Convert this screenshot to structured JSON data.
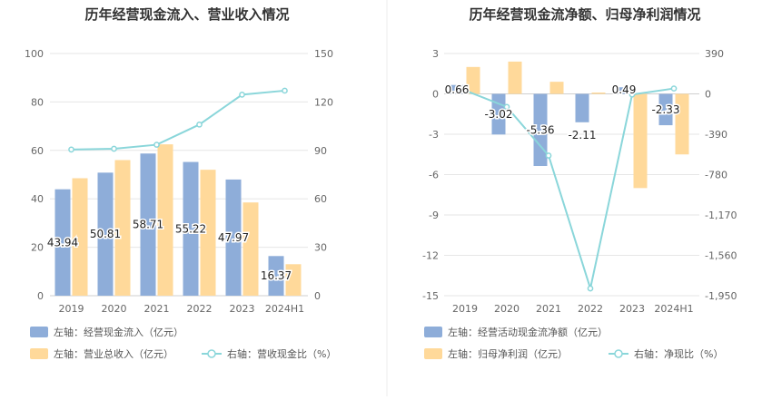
{
  "chart_data": [
    {
      "type": "bar",
      "title": "历年经营现金流入、营业收入情况",
      "categories": [
        "2019",
        "2020",
        "2021",
        "2022",
        "2023",
        "2024H1"
      ],
      "left_axis": {
        "min": 0,
        "max": 100,
        "ticks": [
          "0",
          "20",
          "40",
          "60",
          "80",
          "100"
        ]
      },
      "right_axis": {
        "min": 0,
        "max": 150,
        "ticks": [
          "0",
          "30",
          "60",
          "90",
          "120",
          "150"
        ]
      },
      "series": [
        {
          "name": "左轴：经营现金流入（亿元）",
          "kind": "bar",
          "axis": "left",
          "color": "#8eadd9",
          "values": [
            43.94,
            50.81,
            58.71,
            55.22,
            47.97,
            16.37
          ],
          "labels": [
            "43.94",
            "50.81",
            "58.71",
            "55.22",
            "47.97",
            "16.37"
          ]
        },
        {
          "name": "左轴：营业总收入（亿元）",
          "kind": "bar",
          "axis": "left",
          "color": "#ffd99a",
          "values": [
            48.5,
            56.0,
            62.5,
            52.0,
            38.5,
            13.0
          ]
        },
        {
          "name": "右轴：营收现金比（%）",
          "kind": "line",
          "axis": "right",
          "color": "#8ad6da",
          "values": [
            90.5,
            91.0,
            93.5,
            106.0,
            124.5,
            127.0
          ]
        }
      ],
      "grid": true,
      "legend_position": "bottom-left"
    },
    {
      "type": "bar",
      "title": "历年经营现金流净额、归母净利润情况",
      "categories": [
        "2019",
        "2020",
        "2021",
        "2022",
        "2023",
        "2024H1"
      ],
      "left_axis": {
        "min": -15,
        "max": 3,
        "ticks": [
          "-15",
          "-12",
          "-9",
          "-6",
          "-3",
          "0",
          "3"
        ]
      },
      "right_axis": {
        "min": -1950,
        "max": 390,
        "ticks": [
          "-1,950",
          "-1,560",
          "-1,170",
          "-780",
          "-390",
          "0",
          "390"
        ]
      },
      "series": [
        {
          "name": "左轴：经营活动现金流净额（亿元）",
          "kind": "bar",
          "axis": "left",
          "color": "#8eadd9",
          "values": [
            0.66,
            -3.02,
            -5.36,
            -2.11,
            0.49,
            -2.33
          ],
          "labels": [
            "0.66",
            "-3.02",
            "-5.36",
            "-2.11",
            "0.49",
            "-2.33"
          ]
        },
        {
          "name": "左轴：归母净利润（亿元）",
          "kind": "bar",
          "axis": "left",
          "color": "#ffd99a",
          "values": [
            2.0,
            2.4,
            0.9,
            0.1,
            -7.0,
            -4.5
          ]
        },
        {
          "name": "右轴：净现比（%）",
          "kind": "line",
          "axis": "right",
          "color": "#8ad6da",
          "values": [
            33,
            -126,
            -596,
            -1880,
            -7,
            52
          ]
        }
      ],
      "grid": true,
      "legend_position": "bottom-left"
    }
  ]
}
